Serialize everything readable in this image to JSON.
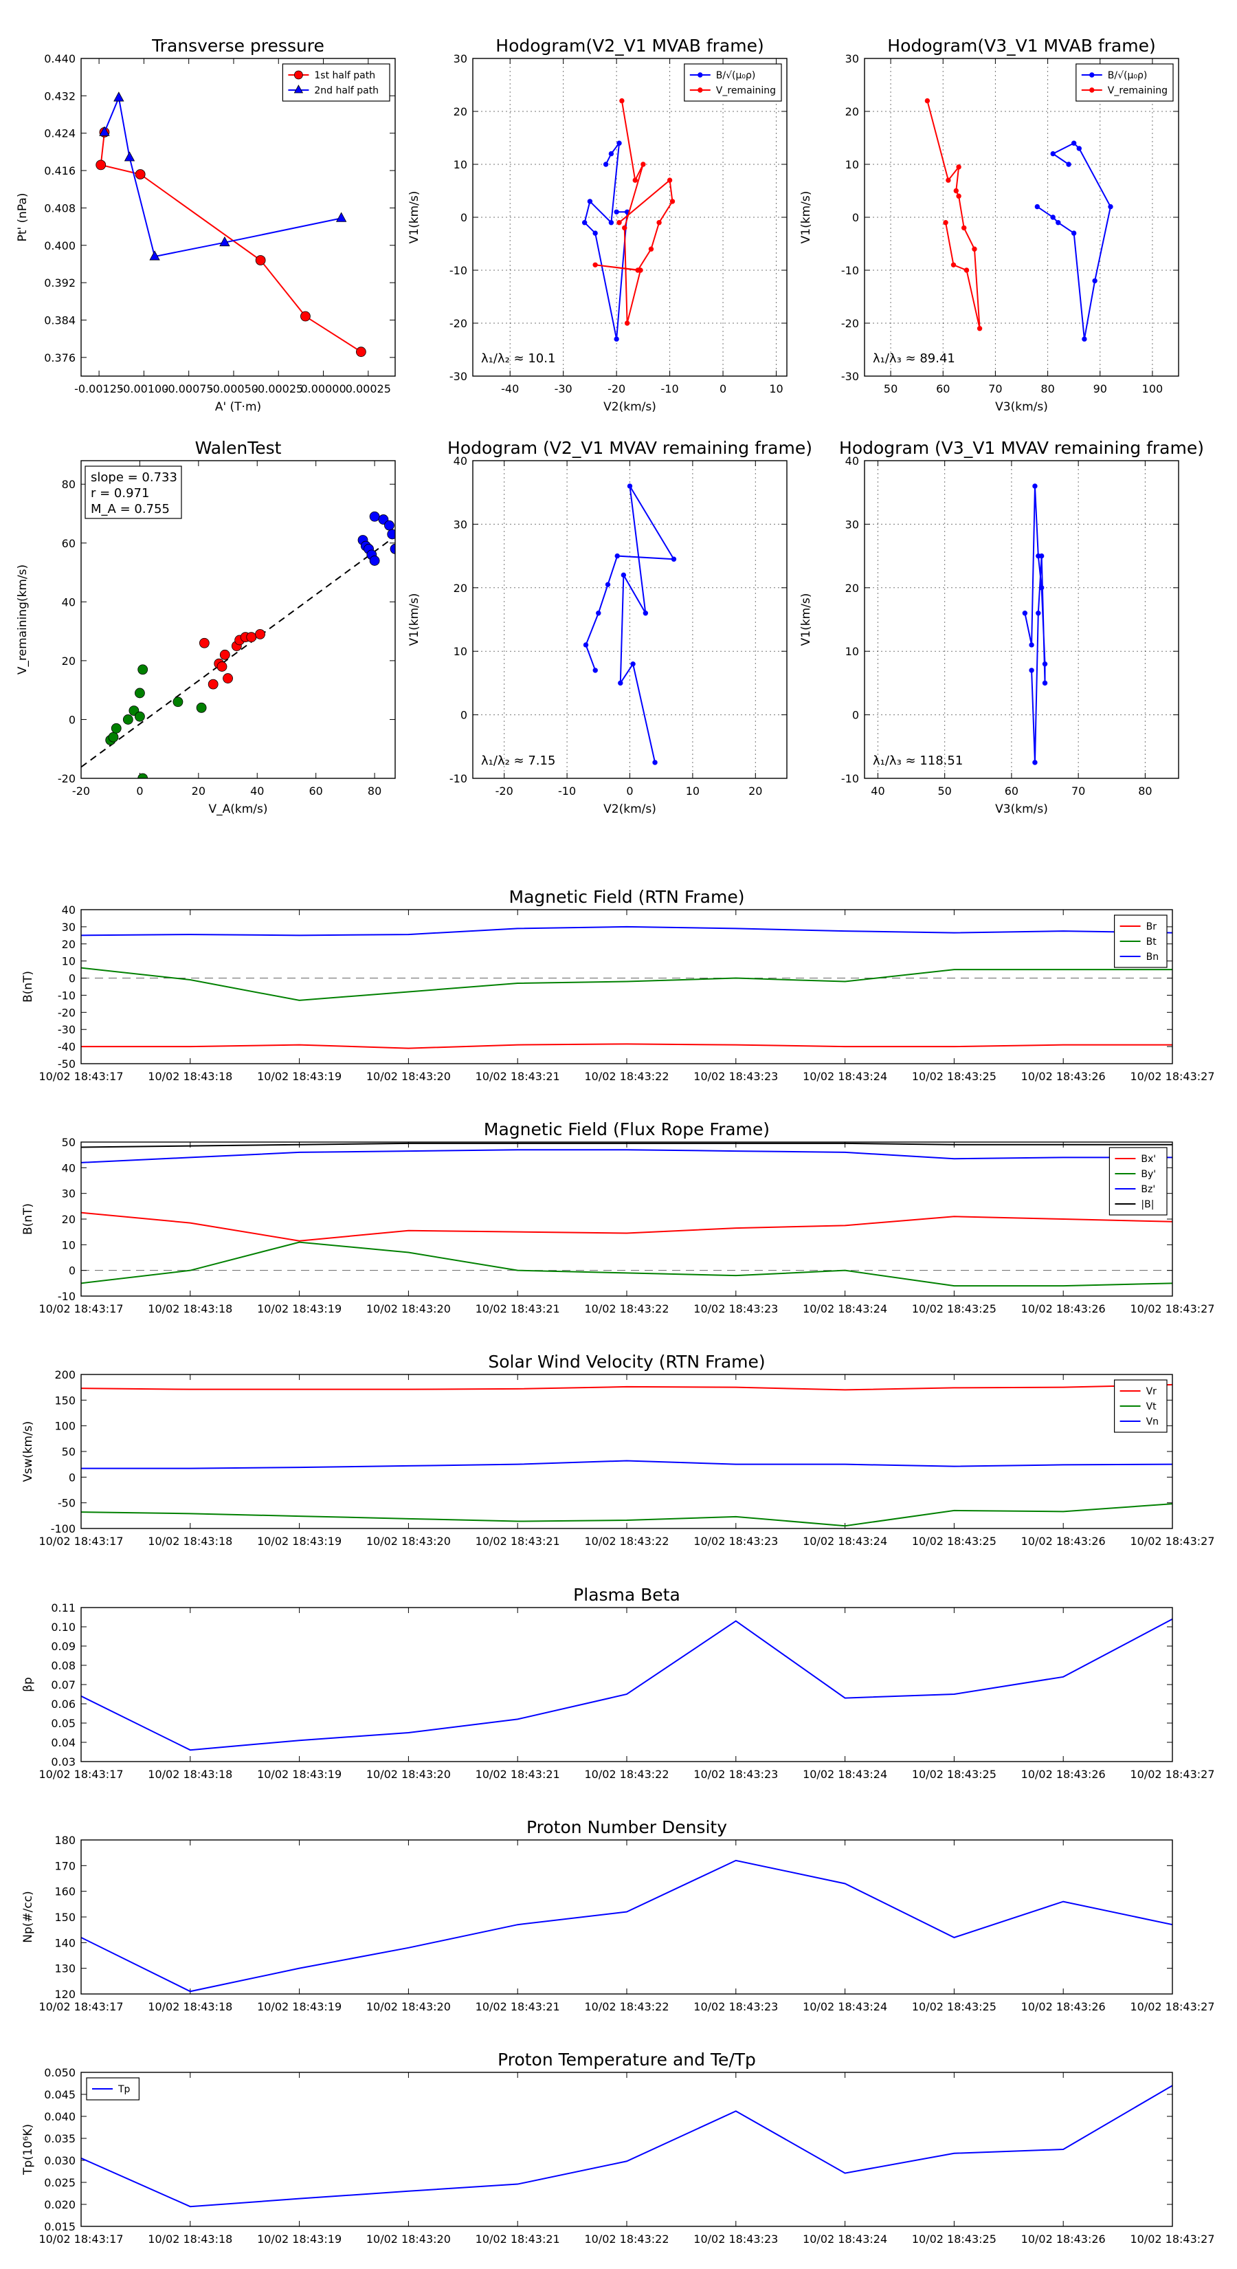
{
  "colors": {
    "red": "#ff0000",
    "blue": "#0000ff",
    "green": "#008000",
    "black": "#000000"
  },
  "time_ticks": [
    "10/02 18:43:17",
    "10/02 18:43:18",
    "10/02 18:43:19",
    "10/02 18:43:20",
    "10/02 18:43:21",
    "10/02 18:43:22",
    "10/02 18:43:23",
    "10/02 18:43:24",
    "10/02 18:43:25",
    "10/02 18:43:26",
    "10/02 18:43:27"
  ],
  "chart_data": [
    {
      "id": "transverse_pressure",
      "type": "line",
      "title": "Transverse pressure",
      "xlabel": "A' (T·m)",
      "ylabel": "Pt' (nPa)",
      "xlim": [
        -0.00135,
        0.0004
      ],
      "ylim": [
        0.372,
        0.44
      ],
      "xticks": [
        -0.00125,
        -0.001,
        -0.00075,
        -0.0005,
        -0.00025,
        0.0,
        0.00025
      ],
      "xtick_labels": [
        "-0.00125",
        "-0.00100",
        "-0.00075",
        "-0.00050",
        "-0.00025",
        "0.00000",
        "0.00025"
      ],
      "yticks": [
        0.376,
        0.384,
        0.392,
        0.4,
        0.408,
        0.416,
        0.424,
        0.432,
        0.44
      ],
      "ytick_labels": [
        "0.376",
        "0.384",
        "0.392",
        "0.400",
        "0.408",
        "0.416",
        "0.424",
        "0.432",
        "0.440"
      ],
      "legend": "top-right",
      "series": [
        {
          "name": "1st half path",
          "color": "#ff0000",
          "marker": "circle",
          "x": [
            -0.00122,
            -0.00124,
            -0.00102,
            -0.00035,
            -0.0001,
            0.00021
          ],
          "y": [
            0.4242,
            0.4172,
            0.4152,
            0.3968,
            0.3848,
            0.3772
          ]
        },
        {
          "name": "2nd half path",
          "color": "#0000ff",
          "marker": "triangle",
          "x": [
            0.0001,
            -0.00055,
            -0.00094,
            -0.00108,
            -0.00114,
            -0.00122
          ],
          "y": [
            0.4058,
            0.4006,
            0.3976,
            0.4188,
            0.4316,
            0.4242
          ]
        }
      ]
    },
    {
      "id": "hodogram_v2v1_mvab",
      "type": "line",
      "title": "Hodogram(V2_V1 MVAB frame)",
      "xlabel": "V2(km/s)",
      "ylabel": "V1(km/s)",
      "xlim": [
        -47,
        12
      ],
      "ylim": [
        -30,
        30
      ],
      "grid": true,
      "xticks": [
        -40,
        -30,
        -20,
        -10,
        0,
        10
      ],
      "yticks": [
        -30,
        -20,
        -10,
        0,
        10,
        20,
        30
      ],
      "legend": "top-right",
      "annotation": "λ₁/λ₂ ≈ 10.1",
      "series": [
        {
          "name": "B/√(μ₀ρ)",
          "color": "#0000ff",
          "x": [
            -22,
            -21,
            -19.5,
            -21,
            -25,
            -26,
            -24,
            -20,
            -18,
            -20
          ],
          "y": [
            10,
            12,
            14,
            -1,
            3,
            -1,
            -3,
            -23,
            1,
            1
          ]
        },
        {
          "name": "V_remaining",
          "color": "#ff0000",
          "x": [
            -19,
            -16.5,
            -15,
            -18.5,
            -18,
            -15.5,
            -24,
            -16,
            -13.5,
            -12,
            -9.5,
            -10,
            -19.5
          ],
          "y": [
            22,
            7,
            10,
            -2,
            -20,
            -10,
            -9,
            -10,
            -6,
            -1,
            3,
            7,
            -1
          ]
        }
      ]
    },
    {
      "id": "hodogram_v3v1_mvab",
      "type": "line",
      "title": "Hodogram(V3_V1 MVAB frame)",
      "xlabel": "V3(km/s)",
      "ylabel": "V1(km/s)",
      "xlim": [
        45,
        105
      ],
      "ylim": [
        -30,
        30
      ],
      "grid": true,
      "xticks": [
        50,
        60,
        70,
        80,
        90,
        100
      ],
      "yticks": [
        -30,
        -20,
        -10,
        0,
        10,
        20,
        30
      ],
      "legend": "top-right",
      "annotation": "λ₁/λ₃ ≈ 89.41",
      "series": [
        {
          "name": "B/√(μ₀ρ)",
          "color": "#0000ff",
          "x": [
            84,
            81,
            85,
            86,
            92,
            89,
            87,
            85,
            82,
            81,
            78
          ],
          "y": [
            10,
            12,
            14,
            13,
            2,
            -12,
            -23,
            -3,
            -1,
            0,
            2
          ]
        },
        {
          "name": "V_remaining",
          "color": "#ff0000",
          "x": [
            57,
            61,
            63,
            62.5,
            63,
            64,
            66,
            67,
            64.5,
            62,
            60.5
          ],
          "y": [
            22,
            7,
            9.5,
            5,
            4,
            -2,
            -6,
            -21,
            -10,
            -9,
            -1
          ]
        }
      ]
    },
    {
      "id": "walen_test",
      "type": "scatter",
      "title": "WalenTest",
      "xlabel": "V_A(km/s)",
      "ylabel": "V_remaining(km/s)",
      "xlim": [
        -20,
        87
      ],
      "ylim": [
        -20,
        88
      ],
      "xticks": [
        -20,
        0,
        20,
        40,
        60,
        80
      ],
      "yticks": [
        -20,
        0,
        20,
        40,
        60,
        80
      ],
      "stats": {
        "slope": "slope = 0.733",
        "r": "r = 0.971",
        "ma": "M_A = 0.755"
      },
      "fit": {
        "slope": 0.733,
        "intercept": -1.5
      },
      "series": [
        {
          "name": "green",
          "color": "#008000",
          "x": [
            -10,
            -9,
            -8,
            -4,
            -2,
            0,
            0,
            1,
            1,
            13,
            21
          ],
          "y": [
            -7,
            -6,
            -3,
            0,
            3,
            1,
            9,
            17,
            -20,
            6,
            4
          ]
        },
        {
          "name": "red",
          "color": "#ff0000",
          "x": [
            22,
            25,
            27,
            28,
            29,
            30,
            33,
            34,
            36,
            38,
            41
          ],
          "y": [
            26,
            12,
            19,
            18,
            22,
            14,
            25,
            27,
            28,
            28,
            29
          ]
        },
        {
          "name": "blue",
          "color": "#0000ff",
          "x": [
            76,
            77,
            78,
            79,
            80,
            80,
            83,
            85,
            86,
            87
          ],
          "y": [
            61,
            59,
            58,
            56,
            54,
            69,
            68,
            66,
            63,
            58
          ]
        }
      ]
    },
    {
      "id": "hodogram_v2v1_mvav",
      "type": "line",
      "title": "Hodogram (V2_V1 MVAV remaining frame)",
      "xlabel": "V2(km/s)",
      "ylabel": "V1(km/s)",
      "xlim": [
        -25,
        25
      ],
      "ylim": [
        -10,
        40
      ],
      "grid": true,
      "xticks": [
        -20,
        -10,
        0,
        10,
        20
      ],
      "yticks": [
        -10,
        0,
        10,
        20,
        30,
        40
      ],
      "annotation": "λ₁/λ₂ ≈ 7.15",
      "series": [
        {
          "name": "B",
          "color": "#0000ff",
          "x": [
            -5.5,
            -7,
            -5,
            -3.5,
            -2,
            7,
            0,
            2.5,
            -1,
            -1.5,
            0.5,
            4
          ],
          "y": [
            7,
            11,
            16,
            20.5,
            25,
            24.5,
            36,
            16,
            22,
            5,
            8,
            -7.5
          ]
        }
      ]
    },
    {
      "id": "hodogram_v3v1_mvav",
      "type": "line",
      "title": "Hodogram (V3_V1 MVAV remaining frame)",
      "xlabel": "V3(km/s)",
      "ylabel": "V1(km/s)",
      "xlim": [
        38,
        85
      ],
      "ylim": [
        -10,
        40
      ],
      "grid": true,
      "xticks": [
        40,
        50,
        60,
        70,
        80
      ],
      "yticks": [
        -10,
        0,
        10,
        20,
        30,
        40
      ],
      "annotation": "λ₁/λ₃ ≈ 118.51",
      "series": [
        {
          "name": "B",
          "color": "#0000ff",
          "x": [
            62,
            63,
            63.5,
            64,
            64.5,
            65,
            65,
            64.5,
            64,
            63.5,
            63
          ],
          "y": [
            16,
            11,
            36,
            25,
            20,
            8,
            5,
            25,
            16,
            -7.5,
            7
          ]
        }
      ]
    },
    {
      "id": "mag_rtn",
      "type": "line",
      "title": "Magnetic Field (RTN Frame)",
      "ylabel": "B(nT)",
      "ylim": [
        -50,
        40
      ],
      "yticks": [
        -50,
        -40,
        -30,
        -20,
        -10,
        0,
        10,
        20,
        30,
        40
      ],
      "zero_line": true,
      "legend": "top-right",
      "series": [
        {
          "name": "Br",
          "color": "#ff0000",
          "y": [
            -40,
            -40,
            -39,
            -41,
            -39,
            -38.5,
            -39,
            -40,
            -40,
            -39,
            -39
          ]
        },
        {
          "name": "Bt",
          "color": "#008000",
          "y": [
            6,
            -1,
            -13,
            -8,
            -3,
            -2,
            0,
            -2,
            5,
            5,
            5
          ]
        },
        {
          "name": "Bn",
          "color": "#0000ff",
          "y": [
            25,
            25.5,
            25,
            25.5,
            29,
            30,
            29,
            27.5,
            26.5,
            27.5,
            26.5
          ]
        }
      ]
    },
    {
      "id": "mag_fluxrope",
      "type": "line",
      "title": "Magnetic Field (Flux Rope Frame)",
      "ylabel": "B(nT)",
      "ylim": [
        -10,
        50
      ],
      "yticks": [
        -10,
        0,
        10,
        20,
        30,
        40,
        50
      ],
      "zero_line": true,
      "legend": "top-right",
      "series": [
        {
          "name": "Bx'",
          "color": "#ff0000",
          "y": [
            22.5,
            18.5,
            11.5,
            15.5,
            15,
            14.5,
            16.5,
            17.5,
            21,
            20,
            19
          ]
        },
        {
          "name": "By'",
          "color": "#008000",
          "y": [
            -5,
            0,
            11,
            7,
            0,
            -1,
            -2,
            0,
            -6,
            -6,
            -5
          ]
        },
        {
          "name": "Bz'",
          "color": "#0000ff",
          "y": [
            42,
            44,
            46,
            46.5,
            47,
            47,
            46.5,
            46,
            43.5,
            44,
            44
          ]
        },
        {
          "name": "|B|",
          "color": "#000000",
          "y": [
            48,
            48.5,
            49,
            49.5,
            49.5,
            49.5,
            49.5,
            49.5,
            49,
            49,
            49
          ]
        }
      ]
    },
    {
      "id": "solar_wind_velocity",
      "type": "line",
      "title": "Solar Wind Velocity (RTN Frame)",
      "ylabel": "Vsw(km/s)",
      "ylim": [
        -100,
        200
      ],
      "yticks": [
        -100,
        -50,
        0,
        50,
        100,
        150,
        200
      ],
      "legend": "top-right",
      "series": [
        {
          "name": "Vr",
          "color": "#ff0000",
          "y": [
            173,
            171,
            171,
            171,
            172,
            176,
            175,
            170,
            174,
            175,
            180
          ]
        },
        {
          "name": "Vt",
          "color": "#008000",
          "y": [
            -68,
            -71,
            -76,
            -81,
            -86,
            -84,
            -77,
            -95,
            -65,
            -67,
            -52
          ]
        },
        {
          "name": "Vn",
          "color": "#0000ff",
          "y": [
            17,
            17,
            19,
            22,
            25,
            32,
            25,
            25,
            21,
            24,
            25
          ]
        }
      ]
    },
    {
      "id": "plasma_beta",
      "type": "line",
      "title": "Plasma Beta",
      "ylabel": "βp",
      "ylim": [
        0.03,
        0.11
      ],
      "yticks": [
        0.03,
        0.04,
        0.05,
        0.06,
        0.07,
        0.08,
        0.09,
        0.1,
        0.11
      ],
      "ytick_labels": [
        "0.03",
        "0.04",
        "0.05",
        "0.06",
        "0.07",
        "0.08",
        "0.09",
        "0.10",
        "0.11"
      ],
      "series": [
        {
          "name": "beta",
          "color": "#0000ff",
          "y": [
            0.064,
            0.036,
            0.041,
            0.045,
            0.052,
            0.065,
            0.103,
            0.063,
            0.065,
            0.074,
            0.104
          ]
        }
      ]
    },
    {
      "id": "proton_density",
      "type": "line",
      "title": "Proton Number Density",
      "ylabel": "Np(#/cc)",
      "ylim": [
        120,
        180
      ],
      "yticks": [
        120,
        130,
        140,
        150,
        160,
        170,
        180
      ],
      "series": [
        {
          "name": "Np",
          "color": "#0000ff",
          "y": [
            142,
            121,
            130,
            138,
            147,
            152,
            172,
            163,
            142,
            156,
            147
          ]
        }
      ]
    },
    {
      "id": "proton_temperature",
      "type": "line",
      "title": "Proton Temperature and Te/Tp",
      "ylabel": "Tp(10⁶K)",
      "ylim": [
        0.015,
        0.05
      ],
      "yticks": [
        0.015,
        0.02,
        0.025,
        0.03,
        0.035,
        0.04,
        0.045,
        0.05
      ],
      "ytick_labels": [
        "0.015",
        "0.020",
        "0.025",
        "0.030",
        "0.035",
        "0.040",
        "0.045",
        "0.050"
      ],
      "legend": "top-left",
      "series": [
        {
          "name": "Tp",
          "color": "#0000ff",
          "y": [
            0.0305,
            0.0195,
            0.0213,
            0.023,
            0.0246,
            0.0298,
            0.0412,
            0.0271,
            0.0316,
            0.0325,
            0.047
          ]
        }
      ]
    }
  ]
}
